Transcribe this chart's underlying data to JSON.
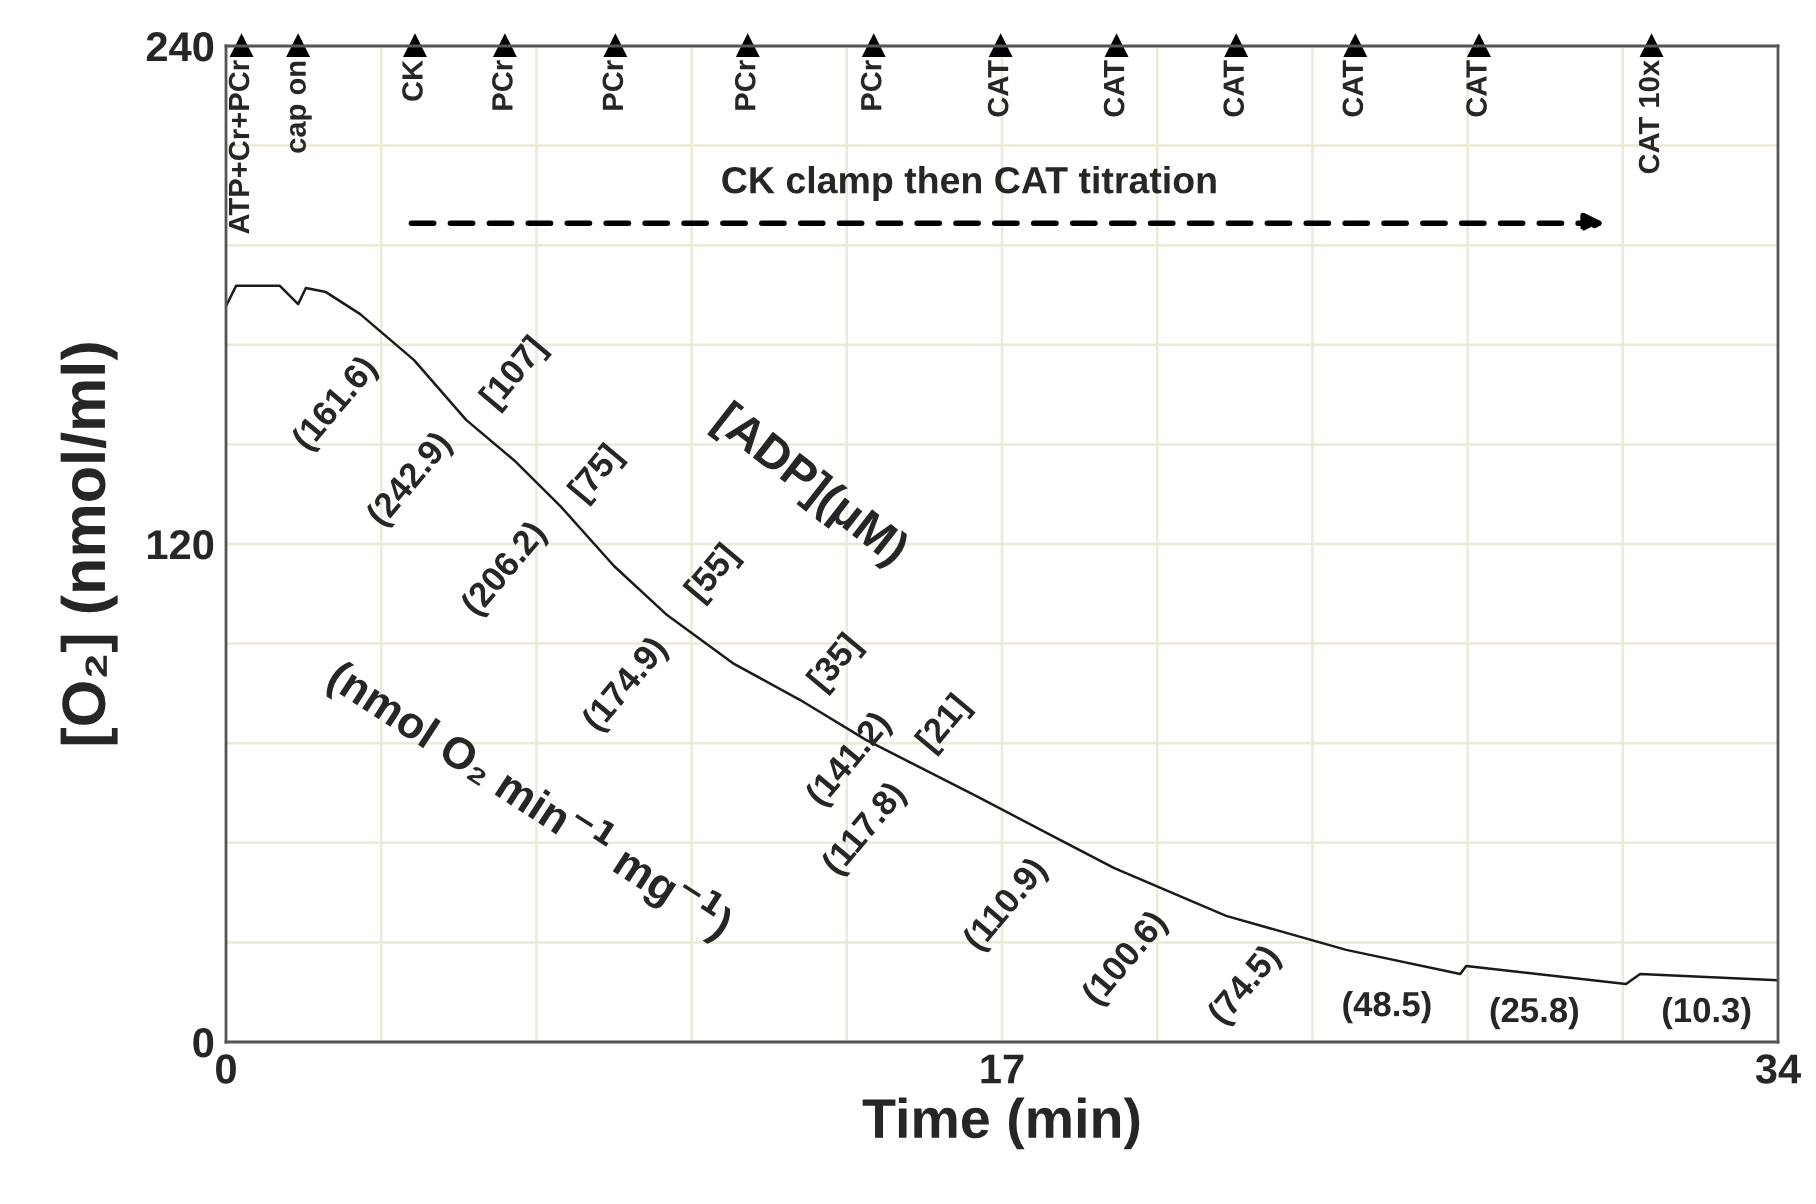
{
  "chart_data": {
    "type": "line",
    "xlabel": "Time (min)",
    "ylabel": "[O₂] (nmol/ml)",
    "xlim": [
      0,
      34
    ],
    "ylim": [
      0,
      240
    ],
    "xticks": [
      0,
      {
        "value": 3.4,
        "label": null
      },
      {
        "value": 6.8,
        "label": null
      },
      {
        "value": 10.2,
        "label": null
      },
      {
        "value": 13.6,
        "label": null
      },
      17,
      {
        "value": 20.4,
        "label": null
      },
      {
        "value": 23.8,
        "label": null
      },
      {
        "value": 27.2,
        "label": null
      },
      {
        "value": 30.6,
        "label": null
      },
      34
    ],
    "yticks": [
      0,
      {
        "value": 24,
        "label": null
      },
      {
        "value": 48,
        "label": null
      },
      {
        "value": 72,
        "label": null
      },
      {
        "value": 96,
        "label": null
      },
      120,
      {
        "value": 144,
        "label": null
      },
      {
        "value": 168,
        "label": null
      },
      {
        "value": 192,
        "label": null
      },
      {
        "value": 216,
        "label": null
      },
      240
    ],
    "grid": true,
    "marker": "none",
    "line_style": "solid",
    "series": [
      {
        "color": "#1a1a1a",
        "x": [
          0,
          0.22,
          1.18,
          1.58,
          1.75,
          2.19,
          2.94,
          4.12,
          5.26,
          6.31,
          7.32,
          8.5,
          9.64,
          11.13,
          12.58,
          14.02,
          16.43,
          18.27,
          19.46,
          21.91,
          24.54,
          27.04,
          27.17,
          30.67,
          30.98,
          34
        ],
        "values": [
          177.3,
          182.2,
          182.2,
          177.8,
          181.7,
          180.7,
          175.4,
          164.3,
          149.9,
          140.2,
          129.2,
          114.7,
          103.1,
          91.1,
          82.4,
          72.8,
          59.3,
          48.7,
          41.9,
          30.4,
          22.2,
          16.4,
          18.3,
          14.0,
          16.4,
          14.9
        ]
      }
    ],
    "annotations": [
      {
        "text": "ATP+Cr+PCr",
        "x": 0.34,
        "y": 240
      },
      {
        "text": "cap on",
        "x": 1.58,
        "y": 240
      },
      {
        "text": "CK",
        "x": 4.14,
        "y": 240
      },
      {
        "text": "PCr",
        "x": 6.11,
        "y": 240
      },
      {
        "text": "PCr",
        "x": 8.53,
        "y": 240
      },
      {
        "text": "PCr",
        "x": 11.43,
        "y": 240
      },
      {
        "text": "PCr",
        "x": 14.19,
        "y": 240
      },
      {
        "text": "CAT",
        "x": 16.97,
        "y": 240
      },
      {
        "text": "CAT",
        "x": 19.51,
        "y": 240
      },
      {
        "text": "CAT",
        "x": 22.13,
        "y": 240
      },
      {
        "text": "CAT",
        "x": 24.74,
        "y": 240
      },
      {
        "text": "CAT",
        "x": 27.45,
        "y": 240
      },
      {
        "text": "CAT 10x",
        "x": 31.23,
        "y": 240
      },
      "CK clamp then CAT titration",
      "(161.6)",
      "[107]",
      "(242.9)",
      "[75]",
      "(206.2)",
      "[55]",
      "(174.9)",
      "[35]",
      "(141.2)",
      "[21]",
      "(117.8)",
      "(110.9)",
      "(100.6)",
      "(74.5)",
      "(48.5)",
      "(25.8)",
      "(10.3)",
      "[ADP](μM)",
      "(nmol O₂ min$^{−1}$ mg$^{−1}$)"
    ]
  }
}
